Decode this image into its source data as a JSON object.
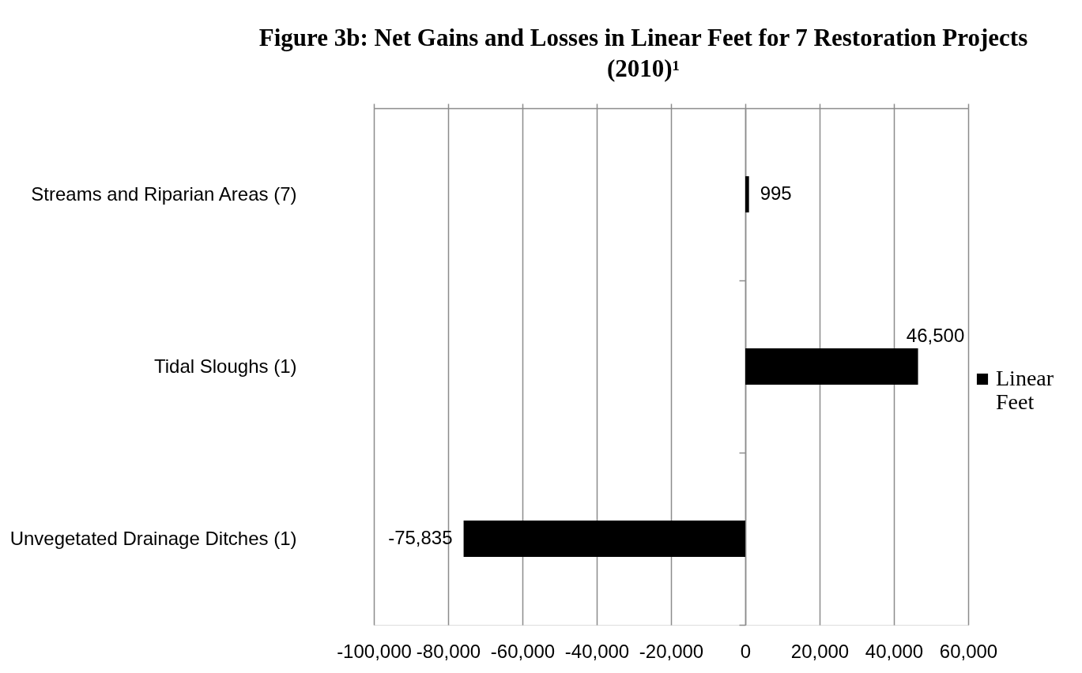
{
  "chart_data": {
    "type": "bar",
    "orientation": "horizontal",
    "title": "Figure 3b: Net Gains and Losses in Linear Feet for 7 Restoration Projects (2010)¹",
    "categories": [
      "Streams and Riparian Areas (7)",
      "Tidal Sloughs (1)",
      "Unvegetated Drainage Ditches (1)"
    ],
    "series": [
      {
        "name": "Linear Feet",
        "color": "#000000",
        "values": [
          995,
          46500,
          -75835
        ],
        "value_labels": [
          "995",
          "46,500",
          "-75,835"
        ]
      }
    ],
    "xlim": [
      -100000,
      60000
    ],
    "xticks": [
      {
        "value": -100000,
        "label": "-100,000"
      },
      {
        "value": -80000,
        "label": "-80,000"
      },
      {
        "value": -60000,
        "label": "-60,000"
      },
      {
        "value": -40000,
        "label": "-40,000"
      },
      {
        "value": -20000,
        "label": "-20,000"
      },
      0,
      {
        "value": 20000,
        "label": "20,000"
      },
      {
        "value": 40000,
        "label": "40,000"
      },
      {
        "value": 60000,
        "label": "60,000"
      }
    ],
    "grid": "x",
    "legend": "right"
  }
}
